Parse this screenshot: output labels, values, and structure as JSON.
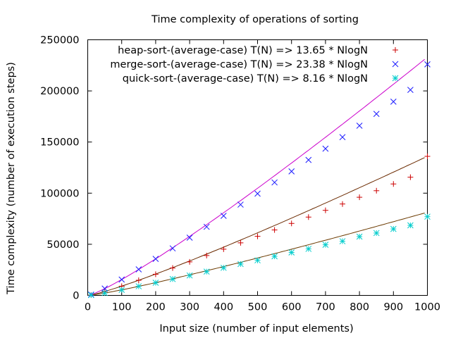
{
  "chart_data": {
    "type": "scatter",
    "title": "Time complexity of operations of sorting",
    "xlabel": "Input size (number of input elements)",
    "ylabel": "Time complexity (number of execution steps)",
    "xlim": [
      0,
      1000
    ],
    "ylim": [
      0,
      250000
    ],
    "x_ticks": [
      0,
      100,
      200,
      300,
      400,
      500,
      600,
      700,
      800,
      900,
      1000
    ],
    "y_ticks": [
      0,
      50000,
      100000,
      150000,
      200000,
      250000
    ],
    "x_tick_labels": [
      "0",
      "100",
      "200",
      "300",
      "400",
      "500",
      "600",
      "700",
      "800",
      "900",
      "1000"
    ],
    "y_tick_labels": [
      "0",
      "50000",
      "100000",
      "150000",
      "200000",
      "250000"
    ],
    "grid": false,
    "legend_position": "top-left",
    "x": [
      10,
      50,
      100,
      150,
      200,
      250,
      300,
      350,
      400,
      450,
      500,
      550,
      600,
      650,
      700,
      750,
      800,
      850,
      900,
      950,
      1000
    ],
    "series": [
      {
        "name": "heap-sort-(average-case) T(N) => 13.65 * NlogN",
        "marker": "+",
        "color": "#cc0000",
        "values": [
          400,
          3850,
          9000,
          14800,
          20700,
          26800,
          32800,
          39000,
          45200,
          51400,
          57800,
          64000,
          70400,
          76600,
          83200,
          89400,
          96000,
          102400,
          109000,
          115600,
          136000
        ]
      },
      {
        "name": "merge-sort-(average-case) T(N) => 23.38 * NlogN",
        "marker": "x",
        "color": "#1a1aff",
        "values": [
          800,
          6700,
          15500,
          25500,
          35700,
          46000,
          56500,
          67100,
          77800,
          88800,
          99500,
          110500,
          121300,
          132500,
          143500,
          154800,
          166000,
          177500,
          189500,
          201000,
          226000
        ]
      },
      {
        "name": "quick-sort-(average-case) T(N) => 8.16 * NlogN",
        "marker": "*",
        "color": "#00cccc",
        "values": [
          300,
          2300,
          5400,
          8900,
          12400,
          16000,
          19500,
          23300,
          27000,
          30700,
          34300,
          38200,
          42000,
          45500,
          49500,
          53000,
          57500,
          61000,
          65000,
          68500,
          77000
        ]
      }
    ],
    "fit_curves": [
      {
        "coefficient": 13.65,
        "color": "#6b2a00"
      },
      {
        "coefficient": 23.38,
        "color": "#cc00cc"
      },
      {
        "coefficient": 8.16,
        "color": "#6b3a00"
      }
    ]
  }
}
